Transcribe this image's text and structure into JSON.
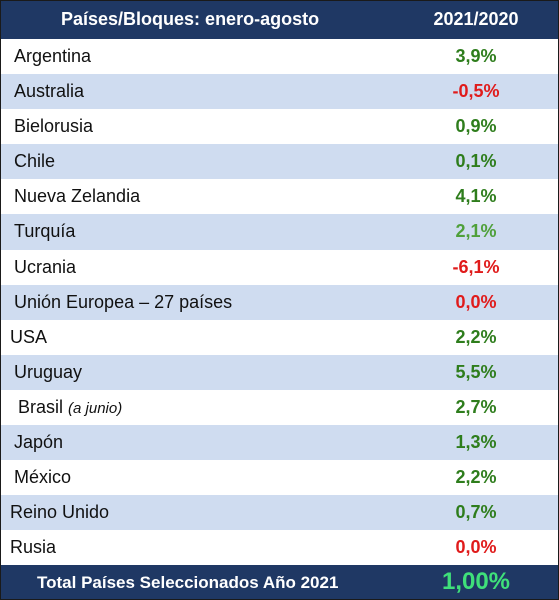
{
  "table": {
    "header": {
      "country_col": "Países/Bloques: enero-agosto",
      "value_col": "2021/2020"
    },
    "rows": [
      {
        "name": "Argentina",
        "value": "3,9%"
      },
      {
        "name": "Australia",
        "value": "-0,5%"
      },
      {
        "name": "Bielorusia",
        "value": "0,9%"
      },
      {
        "name": "Chile",
        "value": "0,1%"
      },
      {
        "name": "Nueva Zelandia",
        "value": "4,1%"
      },
      {
        "name": "Turquía",
        "value": "2,1%"
      },
      {
        "name": "Ucrania",
        "value": "-6,1%"
      },
      {
        "name": "Unión Europea – 27 países",
        "value": "0,0%"
      },
      {
        "name": "USA",
        "value": "2,2%"
      },
      {
        "name": "Uruguay",
        "value": "5,5%"
      },
      {
        "name": "Brasil",
        "note": "(a junio)",
        "value": "2,7%"
      },
      {
        "name": "Japón",
        "value": "1,3%"
      },
      {
        "name": "México",
        "value": "2,2%"
      },
      {
        "name": "Reino Unido",
        "value": "0,7%"
      },
      {
        "name": "Rusia",
        "value": "0,0%"
      }
    ],
    "footer": {
      "label": "Total Países Seleccionados Año 2021",
      "value": "1,00%"
    }
  },
  "colors": {
    "header_bg": "#1f3864",
    "stripe_bg": "#cfdcf0",
    "positive": "#2e7d1c",
    "negative": "#e01b1b",
    "total_value": "#3fe07a"
  }
}
